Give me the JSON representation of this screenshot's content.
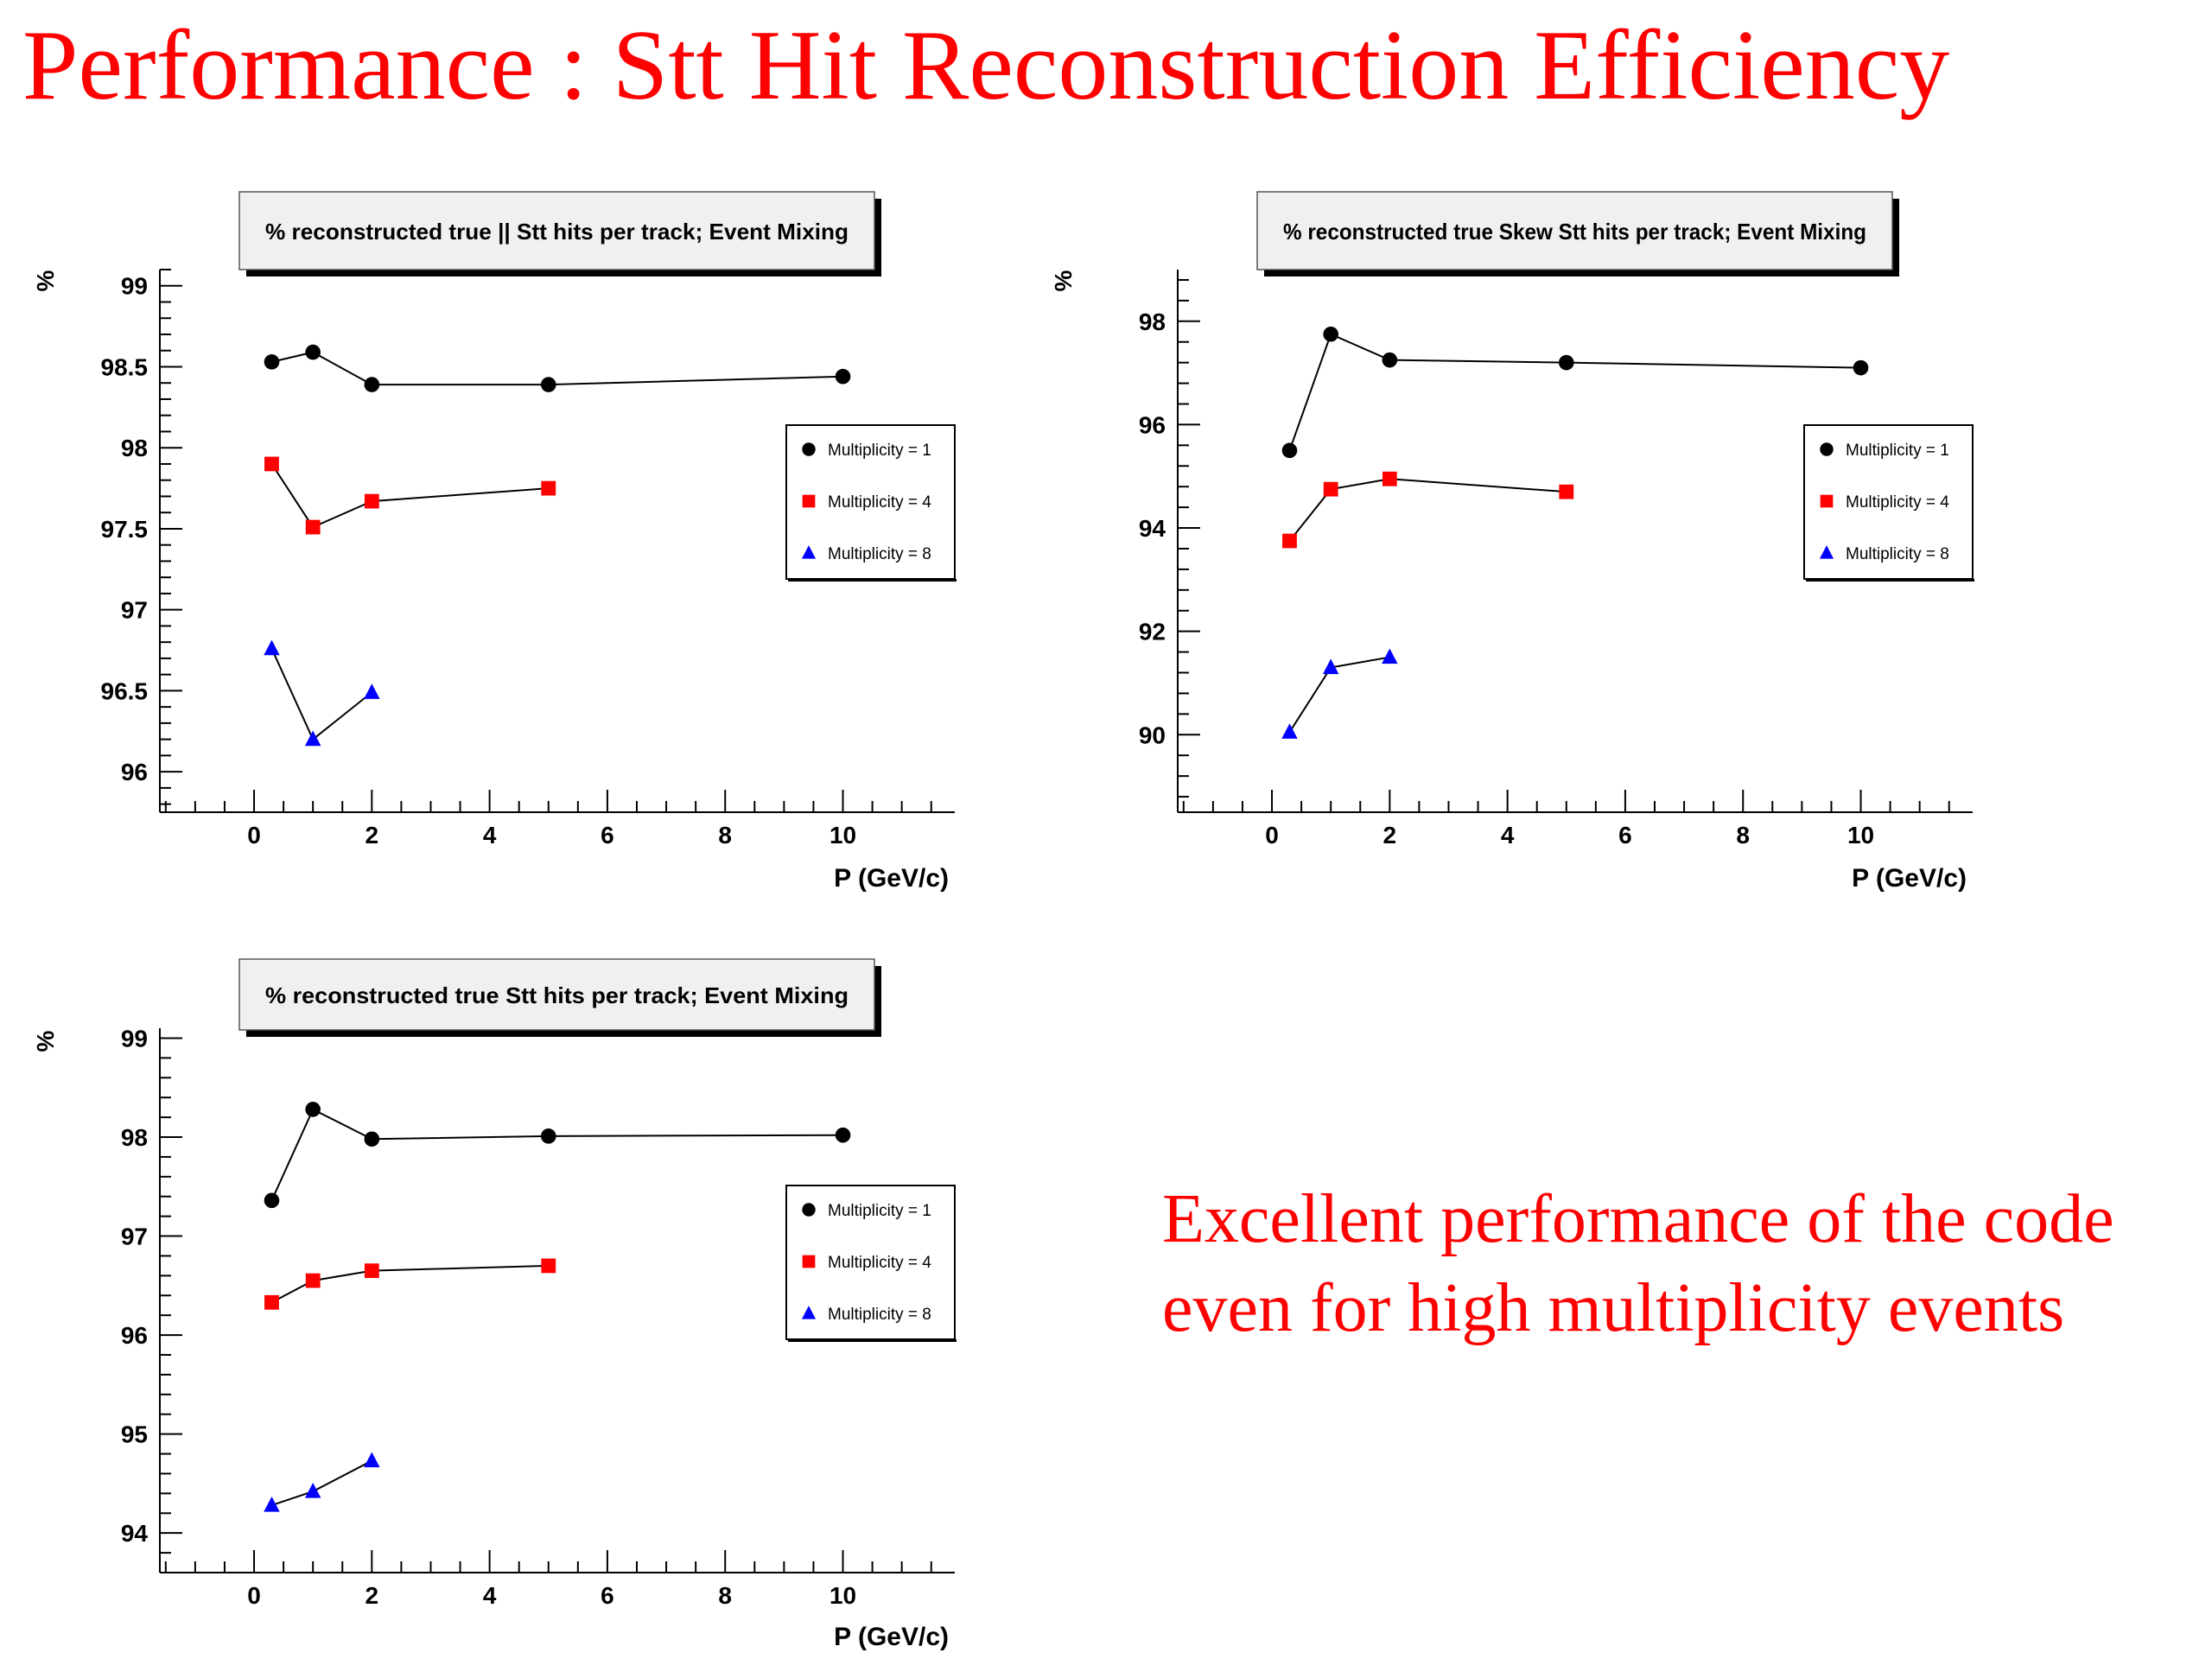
{
  "slide": {
    "title": "Performance : Stt Hit Reconstruction Efficiency",
    "comment": "Excellent performance of the code even for high multiplicity events"
  },
  "colors": {
    "title_text": "#ff0000",
    "multiplicity_1": "#000000",
    "multiplicity_4": "#ff0000",
    "multiplicity_8": "#0000ff",
    "title_box_fill": "#f0f0f0"
  },
  "chart_data": [
    {
      "type": "line",
      "title": "% reconstructed true || Stt hits per track; Event Mixing",
      "xlabel": "P (GeV/c)",
      "ylabel": "%",
      "xlim": [
        -1.6,
        11.9
      ],
      "ylim": [
        95.75,
        99.1
      ],
      "x_ticks": [
        0,
        2,
        4,
        6,
        8,
        10
      ],
      "y_ticks": [
        96,
        96.5,
        97,
        97.5,
        98,
        98.5,
        99
      ],
      "y_tick_labels": [
        "96",
        "96.5",
        "97",
        "97.5",
        "98",
        "98.5",
        "99"
      ],
      "legend_position": "right",
      "series": [
        {
          "name": "Multiplicity = 1",
          "marker": "circle",
          "x": [
            0.3,
            1,
            2,
            5,
            10
          ],
          "y": [
            98.53,
            98.59,
            98.39,
            98.39,
            98.44
          ]
        },
        {
          "name": "Multiplicity = 4",
          "marker": "square",
          "x": [
            0.3,
            1,
            2,
            5
          ],
          "y": [
            97.9,
            97.51,
            97.67,
            97.75
          ]
        },
        {
          "name": "Multiplicity = 8",
          "marker": "triangle",
          "x": [
            0.3,
            1,
            2
          ],
          "y": [
            96.76,
            96.2,
            96.49
          ]
        }
      ]
    },
    {
      "type": "line",
      "title": "% reconstructed true Skew Stt hits per track; Event Mixing",
      "xlabel": "P (GeV/c)",
      "ylabel": "%",
      "xlim": [
        -1.6,
        11.9
      ],
      "ylim": [
        88.5,
        99.0
      ],
      "x_ticks": [
        0,
        2,
        4,
        6,
        8,
        10
      ],
      "y_ticks": [
        90,
        92,
        94,
        96,
        98
      ],
      "y_tick_labels": [
        "90",
        "92",
        "94",
        "96",
        "98"
      ],
      "legend_position": "right",
      "series": [
        {
          "name": "Multiplicity = 1",
          "marker": "circle",
          "x": [
            0.3,
            1,
            2,
            5,
            10
          ],
          "y": [
            95.5,
            97.75,
            97.25,
            97.2,
            97.1
          ]
        },
        {
          "name": "Multiplicity = 4",
          "marker": "square",
          "x": [
            0.3,
            1,
            2,
            5
          ],
          "y": [
            93.75,
            94.75,
            94.95,
            94.7
          ]
        },
        {
          "name": "Multiplicity = 8",
          "marker": "triangle",
          "x": [
            0.3,
            1,
            2
          ],
          "y": [
            90.05,
            91.3,
            91.5
          ]
        }
      ]
    },
    {
      "type": "line",
      "title": "% reconstructed true Stt hits per track; Event Mixing",
      "xlabel": "P (GeV/c)",
      "ylabel": "%",
      "xlim": [
        -1.6,
        11.9
      ],
      "ylim": [
        93.6,
        99.1
      ],
      "x_ticks": [
        0,
        2,
        4,
        6,
        8,
        10
      ],
      "y_ticks": [
        94,
        95,
        96,
        97,
        98,
        99
      ],
      "y_tick_labels": [
        "94",
        "95",
        "96",
        "97",
        "98",
        "99"
      ],
      "legend_position": "right",
      "series": [
        {
          "name": "Multiplicity = 1",
          "marker": "circle",
          "x": [
            0.3,
            1,
            2,
            5,
            10
          ],
          "y": [
            97.36,
            98.28,
            97.98,
            98.01,
            98.02
          ]
        },
        {
          "name": "Multiplicity = 4",
          "marker": "square",
          "x": [
            0.3,
            1,
            2,
            5
          ],
          "y": [
            96.33,
            96.55,
            96.65,
            96.7
          ]
        },
        {
          "name": "Multiplicity = 8",
          "marker": "triangle",
          "x": [
            0.3,
            1,
            2
          ],
          "y": [
            94.28,
            94.42,
            94.73
          ]
        }
      ]
    }
  ]
}
